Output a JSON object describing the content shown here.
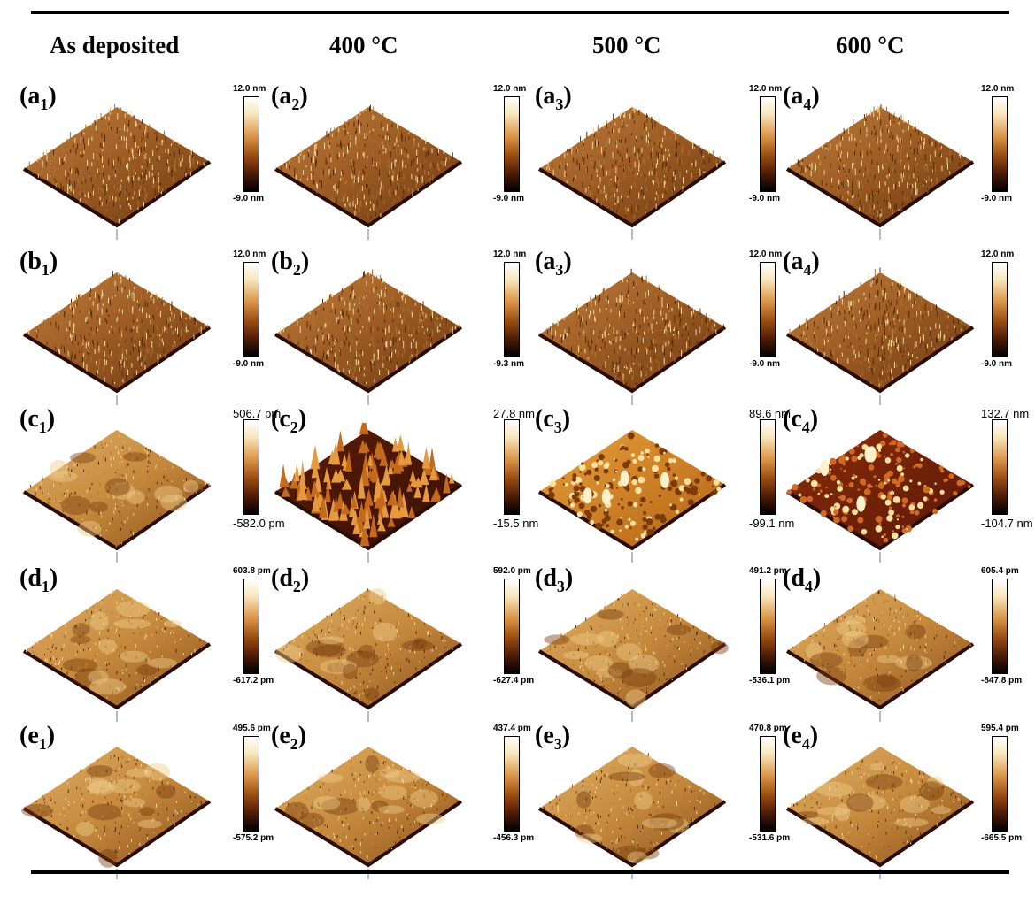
{
  "columns": [
    "As deposited",
    "400 °C",
    "500 °C",
    "600 °C"
  ],
  "rows": [
    {
      "row": "a",
      "cells": [
        {
          "letter": "a",
          "sub": "1",
          "max": "12.0 nm",
          "min": "-9.0 nm",
          "style": "fine"
        },
        {
          "letter": "a",
          "sub": "2",
          "max": "12.0 nm",
          "min": "-9.0 nm",
          "style": "fine"
        },
        {
          "letter": "a",
          "sub": "3",
          "max": "12.0 nm",
          "min": "-9.0 nm",
          "style": "fine"
        },
        {
          "letter": "a",
          "sub": "4",
          "max": "12.0 nm",
          "min": "-9.0 nm",
          "style": "fine"
        }
      ]
    },
    {
      "row": "b",
      "cells": [
        {
          "letter": "b",
          "sub": "1",
          "max": "12.0 nm",
          "min": "-9.0 nm",
          "style": "fine"
        },
        {
          "letter": "b",
          "sub": "2",
          "max": "12.0 nm",
          "min": "-9.3 nm",
          "style": "fine"
        },
        {
          "letter": "a",
          "sub": "3",
          "max": "12.0 nm",
          "min": "-9.0 nm",
          "style": "fine"
        },
        {
          "letter": "a",
          "sub": "4",
          "max": "12.0 nm",
          "min": "-9.0 nm",
          "style": "fine"
        }
      ]
    },
    {
      "row": "c",
      "cells": [
        {
          "letter": "c",
          "sub": "1",
          "max": "506.7 pm",
          "min": "-582.0 pm",
          "style": "smooth"
        },
        {
          "letter": "c",
          "sub": "2",
          "max": "27.8 nm",
          "min": "-15.5 nm",
          "style": "spiky"
        },
        {
          "letter": "c",
          "sub": "3",
          "max": "89.6 nm",
          "min": "-99.1 nm",
          "style": "grainy"
        },
        {
          "letter": "c",
          "sub": "4",
          "max": "132.7 nm",
          "min": "-104.7 nm",
          "style": "dark-grainy"
        }
      ]
    },
    {
      "row": "d",
      "cells": [
        {
          "letter": "d",
          "sub": "1",
          "max": "603.8 pm",
          "min": "-617.2 pm",
          "style": "smooth"
        },
        {
          "letter": "d",
          "sub": "2",
          "max": "592.0 pm",
          "min": "-627.4 pm",
          "style": "smooth"
        },
        {
          "letter": "d",
          "sub": "3",
          "max": "491.2 pm",
          "min": "-536.1 pm",
          "style": "smooth"
        },
        {
          "letter": "d",
          "sub": "4",
          "max": "605.4 pm",
          "min": "-847.8 pm",
          "style": "smooth"
        }
      ]
    },
    {
      "row": "e",
      "cells": [
        {
          "letter": "e",
          "sub": "1",
          "max": "495.6 pm",
          "min": "-575.2 pm",
          "style": "smooth"
        },
        {
          "letter": "e",
          "sub": "2",
          "max": "437.4 pm",
          "min": "-456.3 pm",
          "style": "smooth"
        },
        {
          "letter": "e",
          "sub": "3",
          "max": "470.8 pm",
          "min": "-531.6 pm",
          "style": "smooth"
        },
        {
          "letter": "e",
          "sub": "4",
          "max": "595.4 pm",
          "min": "-665.5 pm",
          "style": "smooth"
        }
      ]
    }
  ]
}
